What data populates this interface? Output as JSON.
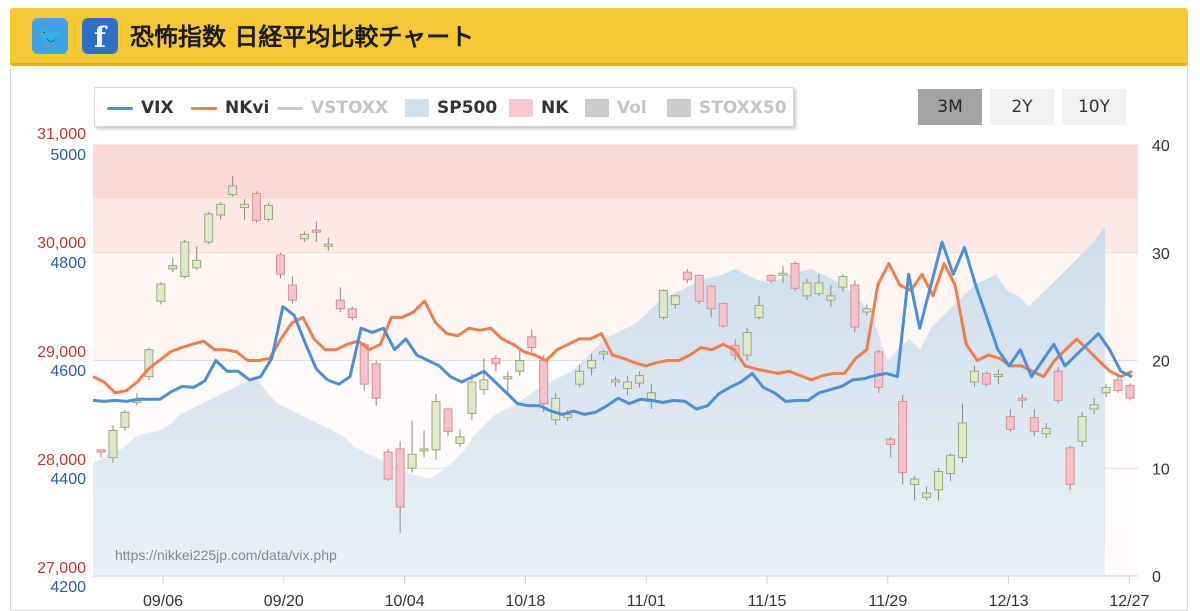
{
  "header": {
    "title": "恐怖指数 日経平均比較チャート",
    "twitter_icon": "twitter-icon",
    "facebook_icon": "facebook-icon",
    "accent_color": "#f5c834"
  },
  "legend": [
    {
      "label": "VIX",
      "color": "#4a8fd8",
      "kind": "line",
      "enabled": true
    },
    {
      "label": "NKvi",
      "color": "#f07e4c",
      "kind": "line",
      "enabled": true
    },
    {
      "label": "VSTOXX",
      "color": "#c8c8c8",
      "kind": "line",
      "enabled": false
    },
    {
      "label": "SP500",
      "color": "#cfe0ee",
      "kind": "area",
      "enabled": true
    },
    {
      "label": "NK",
      "color": "#f8c8d0",
      "kind": "candle",
      "enabled": true
    },
    {
      "label": "Vol",
      "color": "#cccccc",
      "kind": "bar",
      "enabled": false
    },
    {
      "label": "STOXX50",
      "color": "#cccccc",
      "kind": "area",
      "enabled": false
    }
  ],
  "range_buttons": [
    {
      "label": "3M",
      "active": true
    },
    {
      "label": "2Y",
      "active": false
    },
    {
      "label": "10Y",
      "active": false
    }
  ],
  "watermark": "https://nikkei225jp.com/data/vix.php",
  "chart_data": {
    "type": "line",
    "x_ticks": [
      "09/06",
      "09/20",
      "10/04",
      "10/18",
      "11/01",
      "11/15",
      "11/29",
      "12/13",
      "12/27"
    ],
    "nk_axis": {
      "ticks": [
        "31,000",
        "30,000",
        "29,000",
        "28,000",
        "27,000"
      ],
      "range": [
        27000,
        31000
      ],
      "color": "#c0392b"
    },
    "sp_axis": {
      "ticks": [
        "5000",
        "4800",
        "4600",
        "4400",
        "4200"
      ],
      "range": [
        4200,
        5000
      ],
      "color": "#2a5fa0"
    },
    "vix_axis": {
      "ticks": [
        "40",
        "30",
        "20",
        "10",
        "0"
      ],
      "range": [
        0,
        40
      ]
    },
    "zones": [
      {
        "from": 35,
        "to": 40,
        "color": "#fbd9d5"
      },
      {
        "from": 30,
        "to": 35,
        "color": "#fde9e6"
      },
      {
        "from": 20,
        "to": 30,
        "color": "#fff5f3"
      },
      {
        "from": 0,
        "to": 20,
        "color": "#fffcfb"
      }
    ],
    "series": [
      {
        "name": "VIX",
        "axis": "vix",
        "color": "#4a8fd8",
        "values": [
          16.3,
          16.2,
          16.3,
          16.2,
          16.4,
          16.4,
          16.4,
          17.1,
          17.6,
          17.5,
          18.1,
          20.0,
          19.0,
          19.0,
          18.2,
          18.5,
          20.2,
          25.0,
          24.2,
          21.6,
          19.2,
          18.2,
          17.8,
          18.5,
          23.0,
          22.6,
          23.0,
          21.0,
          22.0,
          20.5,
          20.0,
          19.5,
          18.5,
          18.0,
          18.5,
          19.0,
          18.0,
          17.0,
          16.0,
          15.8,
          15.8,
          15.3,
          15.0,
          15.3,
          15.0,
          15.2,
          15.8,
          16.5,
          16.0,
          16.4,
          16.3,
          16.1,
          16.3,
          16.2,
          15.5,
          15.8,
          16.9,
          17.5,
          18.0,
          18.8,
          17.5,
          17.0,
          16.2,
          16.3,
          16.3,
          17.0,
          17.3,
          17.6,
          18.2,
          18.3,
          18.6,
          18.8,
          18.5,
          28.0,
          23.0,
          27.0,
          31.0,
          28.0,
          30.5,
          27.0,
          24.0,
          21.0,
          19.5,
          21.0,
          18.5,
          20.0,
          21.5,
          19.5,
          20.5,
          21.5,
          22.5,
          21.0,
          19.0,
          18.5
        ]
      },
      {
        "name": "NKvi",
        "axis": "vix",
        "color": "#f07e4c",
        "values": [
          18.5,
          18.0,
          17.0,
          17.2,
          18.0,
          19.2,
          20.0,
          20.8,
          21.2,
          21.5,
          21.8,
          21.0,
          21.0,
          20.8,
          20.0,
          20.0,
          20.2,
          22.0,
          23.5,
          24.0,
          22.0,
          21.0,
          21.0,
          21.5,
          21.8,
          21.0,
          21.5,
          24.0,
          24.0,
          24.5,
          25.5,
          23.5,
          22.5,
          22.3,
          23.0,
          22.8,
          23.0,
          22.0,
          21.5,
          20.8,
          20.5,
          20.0,
          21.0,
          21.5,
          22.0,
          22.0,
          22.5,
          20.5,
          20.2,
          19.8,
          19.5,
          19.8,
          20.0,
          20.0,
          20.5,
          21.2,
          21.0,
          21.5,
          21.0,
          19.5,
          19.2,
          19.0,
          18.8,
          19.0,
          18.6,
          18.2,
          18.6,
          18.8,
          18.8,
          20.2,
          21.0,
          27.0,
          29.0,
          27.0,
          26.5,
          28.0,
          26.0,
          29.0,
          27.0,
          21.5,
          20.0,
          20.5,
          20.2,
          19.5,
          19.5,
          19.0,
          18.5,
          20.0,
          21.0,
          22.0,
          21.0,
          20.0,
          19.0,
          18.5,
          19.0
        ]
      },
      {
        "name": "SP500",
        "axis": "sp",
        "color": "#cfe0ee",
        "values": [
          4410,
          4420,
          4430,
          4440,
          4460,
          4465,
          4470,
          4480,
          4500,
          4510,
          4520,
          4530,
          4540,
          4550,
          4560,
          4570,
          4540,
          4520,
          4510,
          4500,
          4490,
          4480,
          4470,
          4460,
          4440,
          4430,
          4420,
          4410,
          4400,
          4390,
          4385,
          4380,
          4395,
          4410,
          4430,
          4460,
          4480,
          4500,
          4510,
          4520,
          4535,
          4550,
          4560,
          4570,
          4580,
          4600,
          4620,
          4640,
          4650,
          4660,
          4670,
          4690,
          4710,
          4720,
          4730,
          4740,
          4750,
          4755,
          4760,
          4770,
          4760,
          4750,
          4745,
          4750,
          4760,
          4765,
          4770,
          4760,
          4750,
          4740,
          4720,
          4700,
          4660,
          4600,
          4620,
          4640,
          4620,
          4660,
          4680,
          4700,
          4720,
          4740,
          4750,
          4760,
          4730,
          4720,
          4700,
          4720,
          4740,
          4760,
          4780,
          4800,
          4820,
          4850
        ]
      }
    ],
    "nk_candles": [
      [
        28150,
        28170,
        28100,
        28180,
        "pink"
      ],
      [
        28100,
        28350,
        28050,
        28400,
        "green"
      ],
      [
        28380,
        28520,
        28350,
        28540,
        "green"
      ],
      [
        28620,
        28630,
        28580,
        28700,
        "green"
      ],
      [
        28850,
        29100,
        28820,
        29120,
        "green"
      ],
      [
        29550,
        29710,
        29520,
        29730,
        "green"
      ],
      [
        29850,
        29880,
        29820,
        29950,
        "green"
      ],
      [
        29780,
        30100,
        29760,
        30120,
        "green"
      ],
      [
        29860,
        29930,
        29840,
        30060,
        "green"
      ],
      [
        30100,
        30360,
        30080,
        30380,
        "green"
      ],
      [
        30350,
        30450,
        30310,
        30470,
        "green"
      ],
      [
        30540,
        30620,
        30520,
        30710,
        "green"
      ],
      [
        30450,
        30420,
        30300,
        30500,
        "green"
      ],
      [
        30550,
        30300,
        30280,
        30570,
        "pink"
      ],
      [
        30440,
        30310,
        30290,
        30460,
        "green"
      ],
      [
        29980,
        29800,
        29760,
        30000,
        "pink"
      ],
      [
        29700,
        29560,
        29530,
        29780,
        "pink"
      ],
      [
        30130,
        30170,
        30100,
        30200,
        "green"
      ],
      [
        30190,
        30210,
        30100,
        30290,
        "pink"
      ],
      [
        30080,
        30060,
        30020,
        30140,
        "green"
      ],
      [
        29560,
        29480,
        29450,
        29680,
        "pink"
      ],
      [
        29480,
        29400,
        29370,
        29500,
        "pink"
      ],
      [
        29150,
        28780,
        28720,
        29170,
        "pink"
      ],
      [
        28970,
        28650,
        28580,
        29000,
        "pink"
      ],
      [
        28150,
        27900,
        27880,
        28180,
        "pink"
      ],
      [
        28180,
        27640,
        27400,
        28250,
        "pink"
      ],
      [
        28000,
        28130,
        27960,
        28440,
        "green"
      ],
      [
        28170,
        28180,
        28100,
        28350,
        "green"
      ],
      [
        28170,
        28620,
        28080,
        28690,
        "green"
      ],
      [
        28340,
        28550,
        28300,
        28560,
        "pink"
      ],
      [
        28290,
        28230,
        28200,
        28360,
        "green"
      ],
      [
        28510,
        28800,
        28450,
        28880,
        "green"
      ],
      [
        28730,
        28820,
        28680,
        29020,
        "green"
      ],
      [
        29020,
        28970,
        28900,
        29050,
        "pink"
      ],
      [
        28850,
        28830,
        28700,
        28900,
        "green"
      ],
      [
        28900,
        29000,
        28860,
        29120,
        "green"
      ],
      [
        29120,
        29220,
        29080,
        29290,
        "pink"
      ],
      [
        29000,
        28600,
        28520,
        29050,
        "pink"
      ],
      [
        28650,
        28450,
        28400,
        28700,
        "green"
      ],
      [
        28500,
        28470,
        28440,
        28540,
        "green"
      ],
      [
        28900,
        28780,
        28750,
        28960,
        "green"
      ],
      [
        28930,
        29000,
        28860,
        29060,
        "green"
      ],
      [
        29060,
        29080,
        29000,
        29100,
        "green"
      ],
      [
        28800,
        28820,
        28760,
        28850,
        "green"
      ],
      [
        28740,
        28800,
        28680,
        28860,
        "green"
      ],
      [
        28860,
        28790,
        28750,
        28900,
        "green"
      ],
      [
        28620,
        28700,
        28550,
        28780,
        "green"
      ],
      [
        29400,
        29650,
        29380,
        29660,
        "green"
      ],
      [
        29520,
        29600,
        29480,
        29610,
        "green"
      ],
      [
        29820,
        29750,
        29720,
        29850,
        "pink"
      ],
      [
        29790,
        29550,
        29520,
        29800,
        "pink"
      ],
      [
        29690,
        29480,
        29400,
        29700,
        "pink"
      ],
      [
        29530,
        29320,
        29300,
        29540,
        "pink"
      ],
      [
        29050,
        29140,
        29000,
        29200,
        "pink"
      ],
      [
        29050,
        29260,
        29000,
        29300,
        "green"
      ],
      [
        29400,
        29510,
        29380,
        29600,
        "green"
      ],
      [
        29790,
        29740,
        29720,
        29800,
        "pink"
      ],
      [
        29800,
        29810,
        29720,
        29880,
        "green"
      ],
      [
        29670,
        29900,
        29640,
        29920,
        "pink"
      ],
      [
        29600,
        29720,
        29560,
        29760,
        "green"
      ],
      [
        29720,
        29620,
        29600,
        29800,
        "green"
      ],
      [
        29560,
        29600,
        29500,
        29700,
        "green"
      ],
      [
        29780,
        29680,
        29640,
        29800,
        "green"
      ],
      [
        29700,
        29310,
        29260,
        29740,
        "pink"
      ],
      [
        29450,
        29480,
        29420,
        29520,
        "green"
      ],
      [
        29080,
        28750,
        28700,
        29100,
        "pink"
      ],
      [
        28270,
        28220,
        28100,
        28290,
        "pink"
      ],
      [
        28620,
        27960,
        27850,
        28680,
        "pink"
      ],
      [
        27900,
        27850,
        27700,
        27930,
        "green"
      ],
      [
        27730,
        27770,
        27700,
        27830,
        "green"
      ],
      [
        27800,
        27970,
        27700,
        28000,
        "green"
      ],
      [
        27950,
        28120,
        27880,
        28140,
        "green"
      ],
      [
        28100,
        28420,
        28050,
        28600,
        "green"
      ],
      [
        28800,
        28900,
        28760,
        28950,
        "green"
      ],
      [
        28880,
        28780,
        28760,
        28900,
        "pink"
      ],
      [
        28860,
        28870,
        28780,
        28920,
        "green"
      ],
      [
        28480,
        28360,
        28340,
        28550,
        "pink"
      ],
      [
        28650,
        28640,
        28560,
        28690,
        "pink"
      ],
      [
        28470,
        28340,
        28300,
        28550,
        "pink"
      ],
      [
        28370,
        28320,
        28280,
        28420,
        "green"
      ],
      [
        28900,
        28630,
        28600,
        28940,
        "pink"
      ],
      [
        28190,
        27850,
        27800,
        28210,
        "pink"
      ],
      [
        28250,
        28480,
        28200,
        28520,
        "green"
      ],
      [
        28550,
        28590,
        28500,
        28650,
        "green"
      ],
      [
        28700,
        28750,
        28660,
        28780,
        "green"
      ],
      [
        28820,
        28720,
        28700,
        28860,
        "pink"
      ],
      [
        28770,
        28650,
        28630,
        28790,
        "pink"
      ]
    ]
  }
}
